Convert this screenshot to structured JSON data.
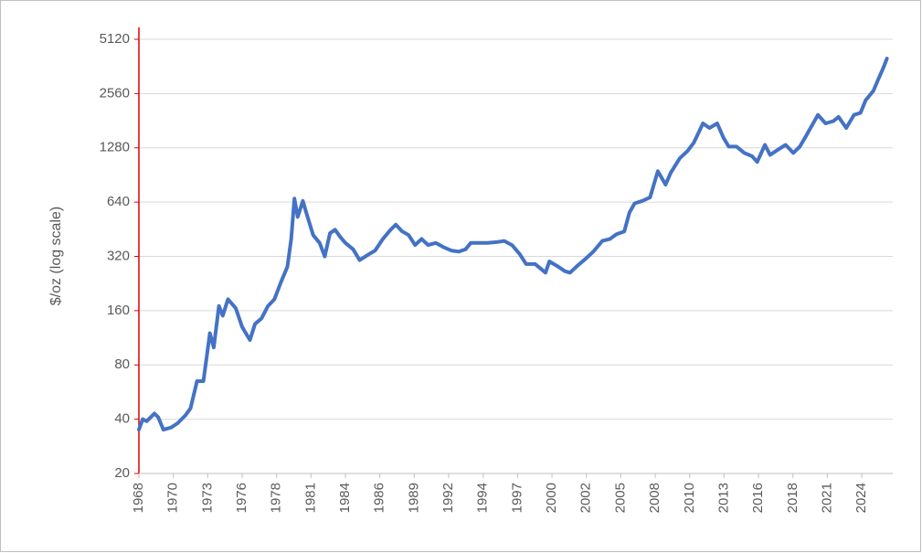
{
  "chart_data": {
    "type": "line",
    "ylabel": "$/oz (log scale)",
    "log_y": true,
    "grid": true,
    "color": "#4472c4",
    "axis_color": "#e00000",
    "x": [
      1968.0,
      1968.3,
      1968.6,
      1969.2,
      1969.5,
      1969.9,
      1970.5,
      1971.0,
      1971.6,
      1972.0,
      1972.5,
      1973.0,
      1973.5,
      1973.8,
      1974.2,
      1974.5,
      1974.9,
      1975.5,
      1976.0,
      1976.6,
      1977.0,
      1977.5,
      1978.0,
      1978.5,
      1979.0,
      1979.5,
      1979.8,
      1980.05,
      1980.3,
      1980.7,
      1981.0,
      1981.5,
      1982.0,
      1982.4,
      1982.8,
      1983.2,
      1983.6,
      1984.0,
      1984.6,
      1985.1,
      1985.7,
      1986.3,
      1986.9,
      1987.5,
      1987.9,
      1988.4,
      1988.9,
      1989.4,
      1989.9,
      1990.4,
      1991.0,
      1991.6,
      1992.2,
      1992.8,
      1993.3,
      1993.7,
      1994.3,
      1995.0,
      1995.8,
      1996.3,
      1996.9,
      1997.5,
      1998.0,
      1998.7,
      1999.5,
      1999.8,
      2000.5,
      2001.0,
      2001.4,
      2002.0,
      2002.6,
      2003.2,
      2003.9,
      2004.5,
      2005.0,
      2005.6,
      2006.0,
      2006.4,
      2007.0,
      2007.6,
      2008.2,
      2008.8,
      2009.2,
      2009.9,
      2010.5,
      2011.0,
      2011.7,
      2012.2,
      2012.8,
      2013.3,
      2013.7,
      2014.3,
      2014.9,
      2015.5,
      2015.9,
      2016.5,
      2016.9,
      2017.5,
      2018.1,
      2018.7,
      2019.2,
      2019.7,
      2020.6,
      2021.2,
      2021.8,
      2022.2,
      2022.8,
      2023.4,
      2023.9,
      2024.3,
      2024.9,
      2025.3,
      2025.7,
      2025.95
    ],
    "values": [
      35,
      40,
      39,
      43,
      41,
      35,
      36,
      38,
      42,
      46,
      65,
      65,
      120,
      100,
      170,
      150,
      185,
      165,
      130,
      110,
      135,
      145,
      170,
      185,
      230,
      280,
      400,
      670,
      530,
      650,
      550,
      420,
      380,
      320,
      430,
      450,
      410,
      380,
      350,
      305,
      325,
      345,
      400,
      450,
      480,
      440,
      420,
      370,
      400,
      370,
      380,
      360,
      345,
      340,
      350,
      380,
      380,
      380,
      385,
      390,
      370,
      330,
      290,
      290,
      260,
      300,
      280,
      265,
      260,
      285,
      310,
      340,
      390,
      400,
      425,
      440,
      560,
      630,
      650,
      680,
      950,
      800,
      930,
      1120,
      1230,
      1370,
      1750,
      1650,
      1750,
      1450,
      1300,
      1300,
      1200,
      1150,
      1070,
      1330,
      1170,
      1250,
      1330,
      1200,
      1300,
      1500,
      1950,
      1750,
      1800,
      1900,
      1650,
      1950,
      2000,
      2350,
      2650,
      3100,
      3600,
      4000
    ],
    "xlim": [
      1968,
      2026.4
    ],
    "xticks": [
      {
        "value": 1968.0,
        "label": "1968"
      },
      {
        "value": 1970.67,
        "label": "1970"
      },
      {
        "value": 1973.33,
        "label": "1973"
      },
      {
        "value": 1976.0,
        "label": "1976"
      },
      {
        "value": 1978.67,
        "label": "1978"
      },
      {
        "value": 1981.33,
        "label": "1981"
      },
      {
        "value": 1984.0,
        "label": "1984"
      },
      {
        "value": 1986.67,
        "label": "1986"
      },
      {
        "value": 1989.33,
        "label": "1989"
      },
      {
        "value": 1992.0,
        "label": "1992"
      },
      {
        "value": 1994.67,
        "label": "1994"
      },
      {
        "value": 1997.33,
        "label": "1997"
      },
      {
        "value": 2000.0,
        "label": "2000"
      },
      {
        "value": 2002.67,
        "label": "2002"
      },
      {
        "value": 2005.33,
        "label": "2005"
      },
      {
        "value": 2008.0,
        "label": "2008"
      },
      {
        "value": 2010.67,
        "label": "2010"
      },
      {
        "value": 2013.33,
        "label": "2013"
      },
      {
        "value": 2016.0,
        "label": "2016"
      },
      {
        "value": 2018.67,
        "label": "2018"
      },
      {
        "value": 2021.33,
        "label": "2021"
      },
      {
        "value": 2024.0,
        "label": "2024"
      }
    ],
    "ylim": [
      20,
      5120
    ],
    "yticks": [
      20,
      40,
      80,
      160,
      320,
      640,
      1280,
      2560,
      5120
    ]
  }
}
